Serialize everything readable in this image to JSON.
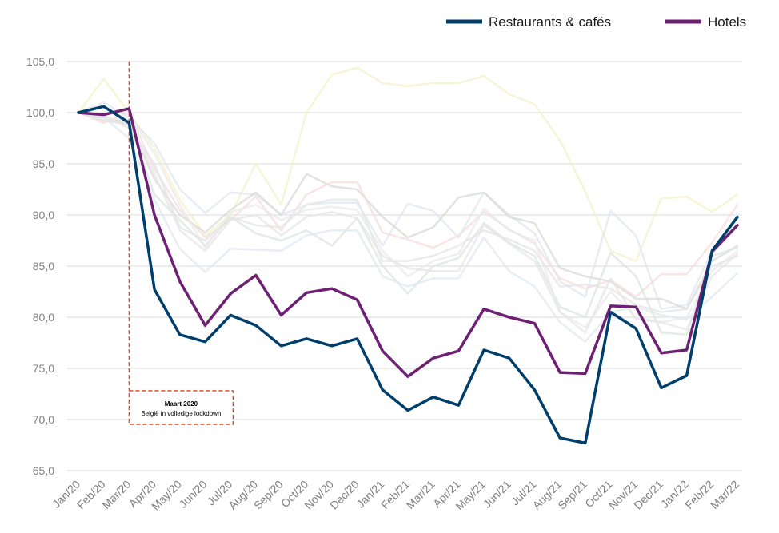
{
  "chart_data": {
    "type": "line",
    "title": "",
    "xlabel": "",
    "ylabel": "",
    "ylim": [
      65,
      105
    ],
    "yticks": [
      65,
      70,
      75,
      80,
      85,
      90,
      95,
      100,
      105
    ],
    "ytick_labels": [
      "65,0",
      "70,0",
      "75,0",
      "80,0",
      "85,0",
      "90,0",
      "95,0",
      "100,0",
      "105,0"
    ],
    "grid": "horizontal",
    "legend_position": "top-right",
    "categories": [
      "Jan/20",
      "Feb/20",
      "Mar/20",
      "Apr/20",
      "May/20",
      "Jun/20",
      "Jul/20",
      "Aug/20",
      "Sep/20",
      "Oct/20",
      "Nov/20",
      "Dec/20",
      "Jan/21",
      "Feb/21",
      "Mar/21",
      "Apr/21",
      "May/21",
      "Jun/21",
      "Jul/21",
      "Aug/21",
      "Sep/21",
      "Oct/21",
      "Nov/21",
      "Dec/21",
      "Jan/22",
      "Feb/22",
      "Mar/22"
    ],
    "series": [
      {
        "name": "Restaurants & cafés",
        "color": "#003f6b",
        "highlight": true,
        "values": [
          100.0,
          100.6,
          99.0,
          82.7,
          78.3,
          77.6,
          80.2,
          79.2,
          77.2,
          77.9,
          77.2,
          77.9,
          72.9,
          70.9,
          72.2,
          71.4,
          76.8,
          76.0,
          72.9,
          68.2,
          67.7,
          80.5,
          78.9,
          73.1,
          74.3,
          86.5,
          89.8
        ]
      },
      {
        "name": "Hotels",
        "color": "#6e2074",
        "highlight": true,
        "values": [
          100.0,
          99.8,
          100.4,
          90.0,
          83.5,
          79.2,
          82.3,
          84.1,
          80.2,
          82.4,
          82.8,
          81.7,
          76.7,
          74.2,
          76.0,
          76.7,
          80.8,
          80.0,
          79.4,
          74.6,
          74.5,
          81.1,
          81.0,
          76.5,
          76.8,
          86.4,
          89.0
        ]
      },
      {
        "color": "#f4f2c9",
        "highlight": false,
        "values": [
          100.0,
          103.3,
          100.0,
          96.5,
          91.5,
          88.0,
          90.0,
          95.0,
          91.0,
          100.0,
          103.7,
          104.4,
          102.9,
          102.6,
          102.9,
          102.9,
          103.6,
          101.8,
          100.8,
          97.3,
          92.3,
          86.5,
          85.5,
          91.6,
          91.8,
          90.3,
          92.0
        ]
      },
      {
        "color": "#dfe7f0",
        "highlight": false,
        "values": [
          100.0,
          101.0,
          99.5,
          97.0,
          92.5,
          90.2,
          92.2,
          92.0,
          90.0,
          91.0,
          91.2,
          91.2,
          87.0,
          91.1,
          90.4,
          87.8,
          92.2,
          90.0,
          88.2,
          83.5,
          82.0,
          90.4,
          88.0,
          80.8,
          81.2,
          86.5,
          88.7
        ]
      },
      {
        "color": "#d9d9d9",
        "highlight": false,
        "values": [
          100.0,
          99.2,
          98.9,
          93.5,
          90.0,
          88.3,
          90.5,
          92.2,
          90.0,
          94.0,
          92.8,
          92.5,
          89.8,
          87.8,
          88.8,
          91.7,
          92.2,
          89.8,
          89.2,
          84.8,
          84.0,
          83.5,
          81.8,
          81.8,
          80.8,
          85.5,
          87.0
        ]
      },
      {
        "color": "#f6dede",
        "highlight": false,
        "values": [
          100.0,
          99.0,
          100.0,
          94.5,
          90.5,
          87.8,
          89.5,
          91.8,
          88.5,
          92.0,
          93.2,
          93.2,
          88.3,
          87.6,
          86.8,
          88.0,
          90.3,
          88.6,
          87.2,
          83.8,
          82.8,
          83.6,
          82.0,
          84.2,
          84.2,
          87.3,
          91.0
        ]
      },
      {
        "color": "#d9e6dd",
        "highlight": false,
        "values": [
          100.0,
          99.5,
          99.0,
          92.0,
          89.5,
          87.0,
          89.8,
          88.2,
          87.5,
          88.5,
          87.0,
          89.7,
          85.0,
          82.3,
          85.0,
          85.8,
          89.2,
          87.3,
          86.0,
          81.0,
          80.0,
          86.3,
          84.0,
          78.5,
          78.3,
          86.0,
          86.8
        ]
      },
      {
        "color": "#e4e4e4",
        "highlight": false,
        "values": [
          100.0,
          99.8,
          98.5,
          95.0,
          88.8,
          87.5,
          89.8,
          89.0,
          88.8,
          91.0,
          91.5,
          91.5,
          85.5,
          85.5,
          86.0,
          87.0,
          88.5,
          87.6,
          86.5,
          83.0,
          83.2,
          82.8,
          81.2,
          80.5,
          80.8,
          85.0,
          86.0
        ]
      },
      {
        "color": "#dfe8f0",
        "highlight": false,
        "values": [
          100.0,
          99.5,
          97.5,
          91.5,
          86.7,
          84.4,
          86.7,
          86.6,
          86.5,
          88.0,
          88.5,
          88.5,
          84.0,
          83.0,
          83.8,
          83.8,
          87.8,
          84.5,
          83.0,
          79.5,
          77.6,
          80.5,
          81.0,
          80.2,
          79.8,
          82.0,
          84.3
        ]
      },
      {
        "color": "#e9e9e9",
        "highlight": false,
        "values": [
          100.0,
          100.5,
          99.8,
          96.0,
          91.0,
          86.8,
          90.3,
          91.0,
          89.5,
          90.5,
          90.8,
          90.5,
          86.5,
          84.0,
          85.5,
          86.2,
          90.6,
          88.5,
          87.5,
          80.5,
          79.0,
          82.5,
          80.0,
          79.5,
          80.0,
          84.5,
          86.5
        ]
      },
      {
        "color": "#e6e6e6",
        "highlight": false,
        "values": [
          100.0,
          99.3,
          99.3,
          94.0,
          88.5,
          86.5,
          89.5,
          90.0,
          88.0,
          89.8,
          90.3,
          89.7,
          86.0,
          84.8,
          84.5,
          84.5,
          89.0,
          87.2,
          85.5,
          80.5,
          78.5,
          83.8,
          79.8,
          79.5,
          78.8,
          84.0,
          86.2
        ]
      }
    ],
    "annotations": [
      {
        "title": "Maart 2020",
        "text": "België in volledige lockdown",
        "x": "Mar/20"
      }
    ]
  }
}
